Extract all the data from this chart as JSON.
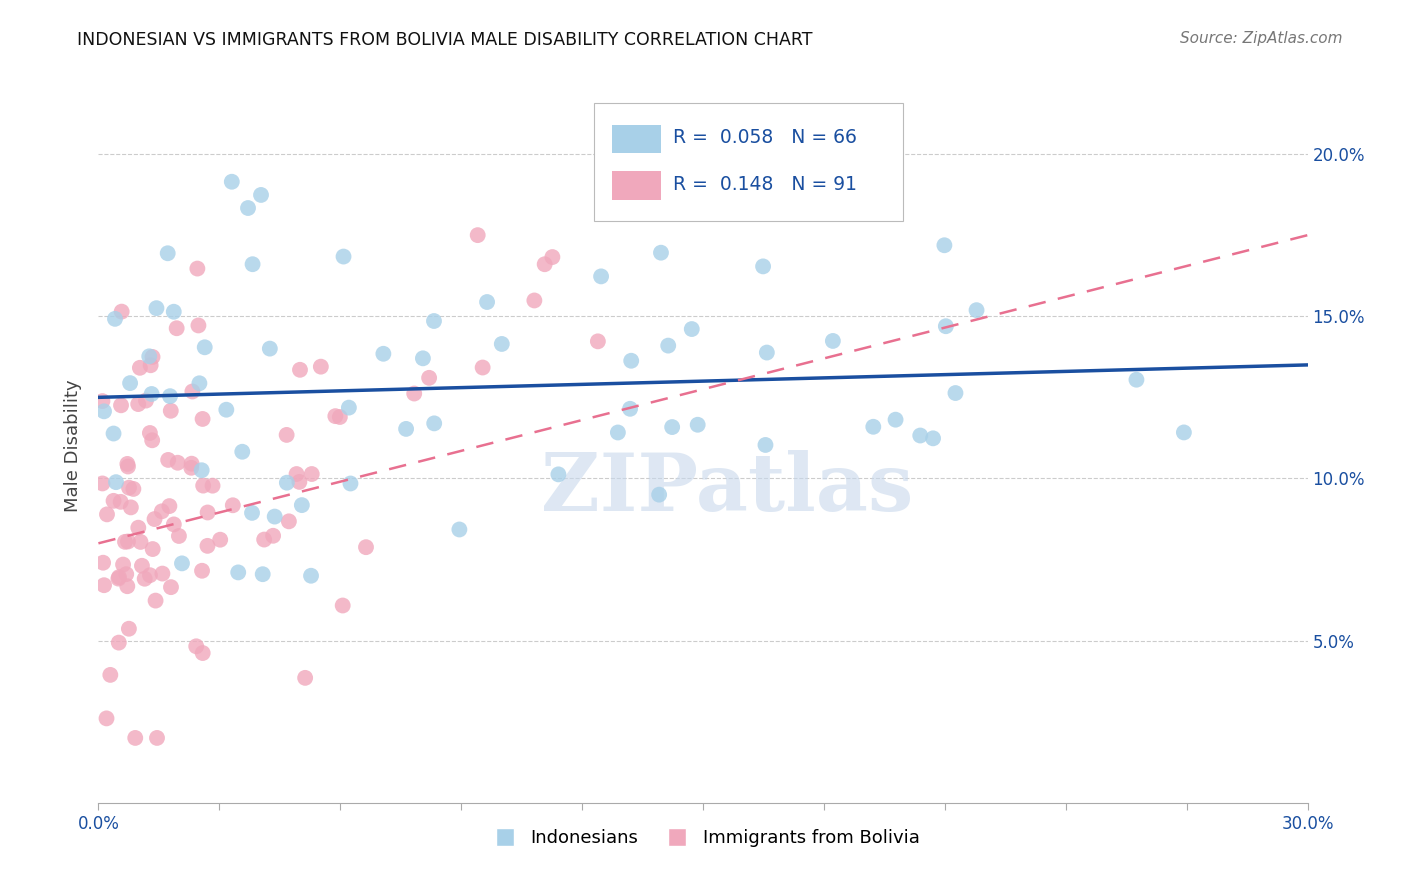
{
  "title": "INDONESIAN VS IMMIGRANTS FROM BOLIVIA MALE DISABILITY CORRELATION CHART",
  "source": "Source: ZipAtlas.com",
  "ylabel": "Male Disability",
  "xlim": [
    0.0,
    0.3
  ],
  "ylim": [
    0.0,
    0.22
  ],
  "watermark": "ZIPatlas",
  "legend_labels": [
    "Indonesians",
    "Immigrants from Bolivia"
  ],
  "R_indonesian": 0.058,
  "N_indonesian": 66,
  "R_bolivia": 0.148,
  "N_bolivia": 91,
  "color_indonesian": "#A8D0E8",
  "color_bolivia": "#F0A8BC",
  "line_indonesian": "#1A4FA0",
  "line_bolivia": "#E87090",
  "ind_line_start_y": 0.125,
  "ind_line_end_y": 0.135,
  "bol_line_start_y": 0.08,
  "bol_line_end_y": 0.175,
  "grid_color": "#CCCCCC",
  "grid_style": "--",
  "watermark_color": "#C8D8EC",
  "watermark_alpha": 0.6,
  "title_fontsize": 12.5,
  "source_fontsize": 11,
  "tick_label_fontsize": 12,
  "ytick_label_fontsize": 12
}
